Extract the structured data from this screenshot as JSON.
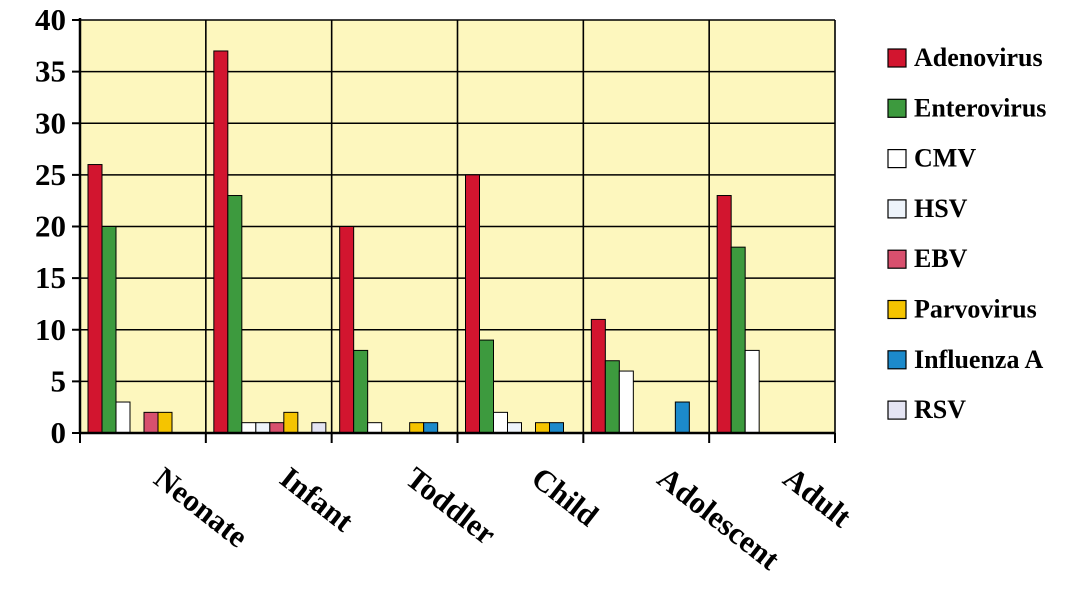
{
  "chart_data": {
    "type": "bar",
    "title": "",
    "xlabel": "",
    "ylabel": "",
    "ylim": [
      0,
      40
    ],
    "yticks": [
      0,
      5,
      10,
      15,
      20,
      25,
      30,
      35,
      40
    ],
    "grid": true,
    "legend_position": "right",
    "plot_background": "#FDF7BE",
    "categories": [
      "Neonate",
      "Infant",
      "Toddler",
      "Child",
      "Adolescent",
      "Adult"
    ],
    "series": [
      {
        "name": "Adenovirus",
        "color": "#D2152F",
        "values": [
          26,
          37,
          20,
          25,
          11,
          23
        ]
      },
      {
        "name": "Enterovirus",
        "color": "#3D9A3E",
        "values": [
          20,
          23,
          8,
          9,
          7,
          18
        ]
      },
      {
        "name": "CMV",
        "color": "#FFFFFF",
        "values": [
          3,
          1,
          1,
          2,
          6,
          8
        ]
      },
      {
        "name": "HSV",
        "color": "#EEF4FB",
        "values": [
          0,
          1,
          0,
          1,
          0,
          0
        ]
      },
      {
        "name": "EBV",
        "color": "#D8506E",
        "values": [
          2,
          1,
          0,
          0,
          0,
          0
        ]
      },
      {
        "name": "Parvovirus",
        "color": "#F5C400",
        "values": [
          2,
          2,
          1,
          1,
          0,
          0
        ]
      },
      {
        "name": "Influenza A",
        "color": "#1C8ACB",
        "values": [
          0,
          0,
          1,
          1,
          3,
          0
        ]
      },
      {
        "name": "RSV",
        "color": "#E4E4F3",
        "values": [
          0,
          1,
          0,
          0,
          0,
          0
        ]
      }
    ]
  }
}
